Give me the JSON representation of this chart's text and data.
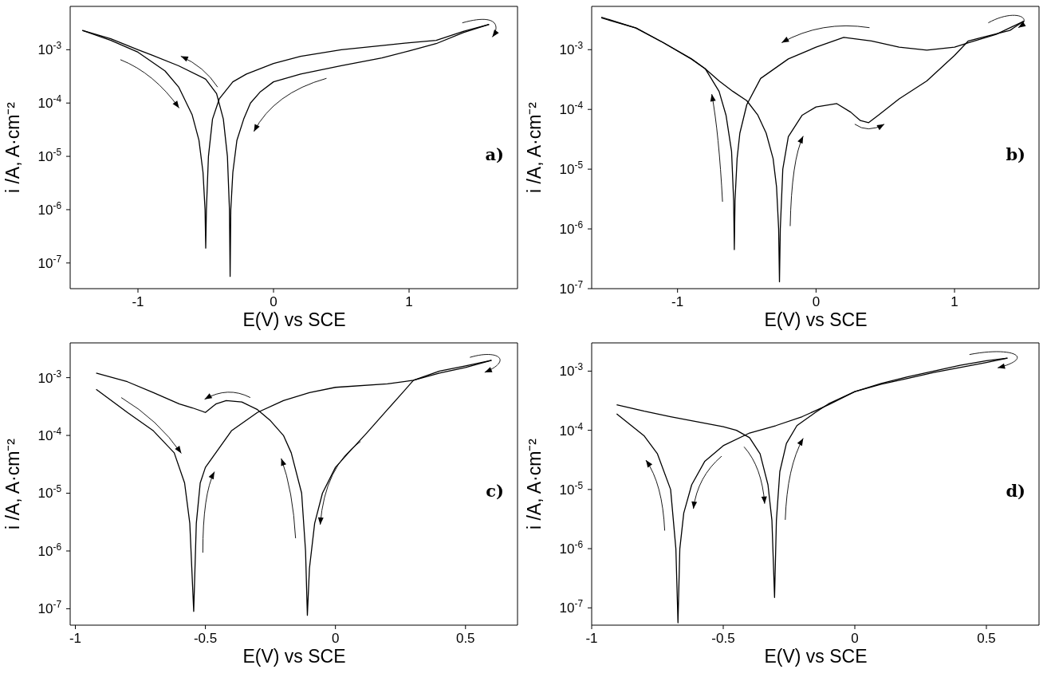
{
  "chart_data": [
    {
      "type": "line",
      "xlabel": "E(V) vs SCE",
      "ylabel": "i /A,  A·cm⁻²",
      "log": "y",
      "annotations": [
        "a)"
      ],
      "xlim": [
        -1.5,
        1.8
      ],
      "xticks": [
        -1,
        0,
        1
      ],
      "ylim": [
        3.3e-08,
        0.0065
      ],
      "yticks": [
        {
          "value": 1e-07,
          "label": "10$^{-7}$"
        },
        {
          "value": 1e-06,
          "label": "10$^{-6}$"
        },
        {
          "value": 1e-05,
          "label": "10$^{-5}$"
        },
        {
          "value": 0.0001,
          "label": "10$^{-4}$"
        },
        {
          "value": 0.001,
          "label": "10$^{-3}$"
        }
      ],
      "series": [
        {
          "color": "#000000",
          "x": [
            -1.41,
            -1.2,
            -1.0,
            -0.8,
            -0.7,
            -0.6,
            -0.55,
            -0.52,
            -0.505,
            -0.5,
            -0.495,
            -0.48,
            -0.45,
            -0.4,
            -0.3,
            -0.2,
            0,
            0.2,
            0.5,
            0.8,
            1.0,
            1.2,
            1.4,
            1.59
          ],
          "values": [
            0.0023,
            0.0015,
            0.0009,
            0.0004,
            0.0002,
            6e-05,
            2e-05,
            5e-06,
            1e-06,
            1.9e-07,
            1e-06,
            1e-05,
            5e-05,
            0.00012,
            0.00025,
            0.00035,
            0.00055,
            0.00075,
            0.001,
            0.0012,
            0.00135,
            0.0015,
            0.0022,
            0.00298
          ]
        },
        {
          "color": "#000000",
          "x": [
            1.59,
            1.4,
            1.2,
            1.0,
            0.8,
            0.5,
            0.2,
            0,
            -0.1,
            -0.17,
            -0.22,
            -0.27,
            -0.3,
            -0.315,
            -0.32,
            -0.325,
            -0.34,
            -0.37,
            -0.42,
            -0.5,
            -0.7,
            -0.9,
            -1.0,
            -1.2,
            -1.41
          ],
          "values": [
            0.00298,
            0.0021,
            0.0013,
            0.00095,
            0.0007,
            0.0005,
            0.00035,
            0.00025,
            0.00016,
            0.0001,
            5e-05,
            2e-05,
            5e-06,
            1e-06,
            5.6e-08,
            1e-06,
            1e-05,
            5e-05,
            0.00015,
            0.00028,
            0.0005,
            0.0008,
            0.001,
            0.0016,
            0.0023
          ]
        }
      ]
    },
    {
      "type": "line",
      "xlabel": "E(V) vs SCE",
      "ylabel": "i /A,  A·cm⁻²",
      "log": "y",
      "annotations": [
        "b)"
      ],
      "xlim": [
        -1.62,
        1.61
      ],
      "xticks": [
        -1,
        0,
        1
      ],
      "ylim": [
        1e-07,
        0.0053
      ],
      "yticks": [
        {
          "value": 1e-07,
          "label": "10$^{-7}$"
        },
        {
          "value": 1e-06,
          "label": "10$^{-6}$"
        },
        {
          "value": 1e-05,
          "label": "10$^{-5}$"
        },
        {
          "value": 0.0001,
          "label": "10$^{-4}$"
        },
        {
          "value": 0.001,
          "label": "10$^{-3}$"
        }
      ],
      "series": [
        {
          "color": "#000000",
          "x": [
            -1.55,
            -1.3,
            -1.1,
            -0.9,
            -0.8,
            -0.7,
            -0.6,
            -0.5,
            -0.42,
            -0.36,
            -0.31,
            -0.285,
            -0.27,
            -0.264,
            -0.258,
            -0.24,
            -0.2,
            -0.1,
            0,
            0.15,
            0.25,
            0.32,
            0.38,
            0.45,
            0.6,
            0.8,
            1.0,
            1.1,
            1.2,
            1.4,
            1.5
          ],
          "values": [
            0.0035,
            0.0023,
            0.0013,
            0.0007,
            0.00048,
            0.0003,
            0.0002,
            0.00014,
            8e-05,
            4e-05,
            1.5e-05,
            5e-06,
            1e-06,
            1.3e-07,
            1e-06,
            1e-05,
            3.5e-05,
            8e-05,
            0.00011,
            0.000125,
            9e-05,
            6.5e-05,
            6e-05,
            8e-05,
            0.00015,
            0.0003,
            0.0008,
            0.0014,
            0.0016,
            0.0021,
            0.003
          ]
        },
        {
          "color": "#000000",
          "x": [
            1.5,
            1.3,
            1.1,
            1.0,
            0.8,
            0.6,
            0.4,
            0.2,
            0,
            -0.2,
            -0.4,
            -0.5,
            -0.55,
            -0.57,
            -0.585,
            -0.59,
            -0.595,
            -0.61,
            -0.65,
            -0.7,
            -0.8,
            -0.9,
            -1.1,
            -1.3,
            -1.55
          ],
          "values": [
            0.003,
            0.0018,
            0.0013,
            0.0011,
            0.00098,
            0.0011,
            0.0014,
            0.0016,
            0.0011,
            0.0007,
            0.00033,
            0.00012,
            4e-05,
            1.5e-05,
            3e-06,
            4.5e-07,
            3e-06,
            2e-05,
            8e-05,
            0.0002,
            0.00048,
            0.0007,
            0.0013,
            0.0023,
            0.0034
          ]
        }
      ]
    },
    {
      "type": "line",
      "xlabel": "E(V) vs SCE",
      "ylabel": "i /A,  A·cm⁻²",
      "log": "y",
      "annotations": [
        "c)"
      ],
      "xlim": [
        -1.02,
        0.7
      ],
      "xticks": [
        -1,
        -0.5,
        0,
        0.5
      ],
      "ylim": [
        5.2e-08,
        0.004
      ],
      "yticks": [
        {
          "value": 1e-07,
          "label": "10$^{-7}$"
        },
        {
          "value": 1e-06,
          "label": "10$^{-6}$"
        },
        {
          "value": 1e-05,
          "label": "10$^{-5}$"
        },
        {
          "value": 0.0001,
          "label": "10$^{-4}$"
        },
        {
          "value": 0.001,
          "label": "10$^{-3}$"
        }
      ],
      "series": [
        {
          "color": "#000000",
          "x": [
            -0.92,
            -0.8,
            -0.7,
            -0.62,
            -0.58,
            -0.56,
            -0.545,
            -0.535,
            -0.52,
            -0.5,
            -0.4,
            -0.3,
            -0.2,
            -0.1,
            0,
            0.2,
            0.3,
            0.4,
            0.5,
            0.6
          ],
          "values": [
            0.00063,
            0.00025,
            0.00012,
            5e-05,
            1.5e-05,
            3e-06,
            9e-08,
            3e-06,
            1.5e-05,
            2.8e-05,
            0.00012,
            0.00025,
            0.0004,
            0.00055,
            0.00068,
            0.00078,
            0.0009,
            0.0012,
            0.0015,
            0.002
          ]
        },
        {
          "color": "#000000",
          "x": [
            0.6,
            0.5,
            0.4,
            0.3,
            0.25,
            0.2,
            0.12,
            0.05,
            0,
            -0.05,
            -0.08,
            -0.1,
            -0.108,
            -0.115,
            -0.13,
            -0.17,
            -0.2,
            -0.25,
            -0.3,
            -0.36,
            -0.42,
            -0.46,
            -0.5,
            -0.55,
            -0.6,
            -0.7,
            -0.8,
            -0.92
          ],
          "values": [
            0.002,
            0.0016,
            0.0013,
            0.0009,
            0.0005,
            0.00028,
            0.00011,
            5e-05,
            2.8e-05,
            1e-05,
            3e-06,
            5e-07,
            7.7e-08,
            1e-06,
            1e-05,
            5e-05,
            0.0001,
            0.00018,
            0.00028,
            0.00038,
            0.0004,
            0.00035,
            0.00025,
            0.0003,
            0.00035,
            0.00055,
            0.00085,
            0.0012
          ]
        }
      ]
    },
    {
      "type": "line",
      "xlabel": "E(V) vs SCE",
      "ylabel": "i /A,  A·cm⁻²",
      "log": "y",
      "annotations": [
        "d)"
      ],
      "xlim": [
        -1,
        0.7
      ],
      "xticks": [
        -1,
        -0.5,
        0,
        0.5
      ],
      "ylim": [
        5.1e-08,
        0.003
      ],
      "yticks": [
        {
          "value": 1e-07,
          "label": "10$^{-7}$"
        },
        {
          "value": 1e-06,
          "label": "10$^{-6}$"
        },
        {
          "value": 1e-05,
          "label": "10$^{-5}$"
        },
        {
          "value": 0.0001,
          "label": "10$^{-4}$"
        },
        {
          "value": 0.001,
          "label": "10$^{-3}$"
        }
      ],
      "series": [
        {
          "color": "#000000",
          "x": [
            -0.905,
            -0.8,
            -0.7,
            -0.6,
            -0.5,
            -0.45,
            -0.4,
            -0.36,
            -0.33,
            -0.315,
            -0.305,
            -0.298,
            -0.285,
            -0.26,
            -0.22,
            -0.15,
            -0.1,
            0,
            0.1,
            0.2,
            0.3,
            0.4,
            0.5,
            0.58
          ],
          "values": [
            0.00027,
            0.00021,
            0.00017,
            0.00014,
            0.000115,
            0.0001,
            7.5e-05,
            4e-05,
            1.2e-05,
            3e-06,
            1.5e-07,
            3e-06,
            2e-05,
            6e-05,
            0.00012,
            0.0002,
            0.00028,
            0.00045,
            0.0006,
            0.00075,
            0.00095,
            0.00115,
            0.0014,
            0.00166
          ]
        },
        {
          "color": "#000000",
          "x": [
            0.58,
            0.5,
            0.4,
            0.3,
            0.2,
            0.1,
            0,
            -0.1,
            -0.2,
            -0.3,
            -0.4,
            -0.5,
            -0.57,
            -0.62,
            -0.65,
            -0.665,
            -0.672,
            -0.68,
            -0.7,
            -0.75,
            -0.8,
            -0.905
          ],
          "values": [
            0.00166,
            0.0015,
            0.00125,
            0.001,
            0.0008,
            0.00062,
            0.00045,
            0.00027,
            0.00017,
            0.00012,
            9e-05,
            5.5e-05,
            3e-05,
            1.2e-05,
            4e-06,
            1e-06,
            5.6e-08,
            1e-06,
            1e-05,
            4e-05,
            8e-05,
            0.00019
          ]
        }
      ]
    }
  ]
}
